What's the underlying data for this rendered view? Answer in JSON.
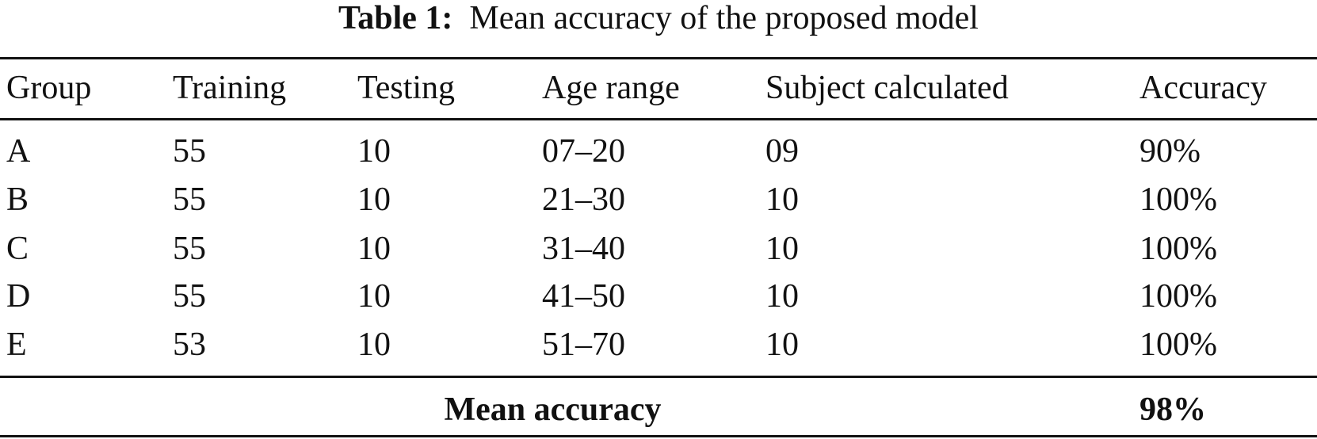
{
  "caption": {
    "label": "Table 1:",
    "text": "Mean accuracy of the proposed model"
  },
  "table": {
    "header": [
      "Group",
      "Training",
      "Testing",
      "Age range",
      "Subject calculated",
      "Accuracy"
    ],
    "rows": [
      [
        "A",
        "55",
        "10",
        "07–20",
        "09",
        "90%"
      ],
      [
        "B",
        "55",
        "10",
        "21–30",
        "10",
        "100%"
      ],
      [
        "C",
        "55",
        "10",
        "31–40",
        "10",
        "100%"
      ],
      [
        "D",
        "55",
        "10",
        "41–50",
        "10",
        "100%"
      ],
      [
        "E",
        "53",
        "10",
        "51–70",
        "10",
        "100%"
      ]
    ],
    "footer": {
      "label": "Mean accuracy",
      "value": "98%"
    }
  }
}
